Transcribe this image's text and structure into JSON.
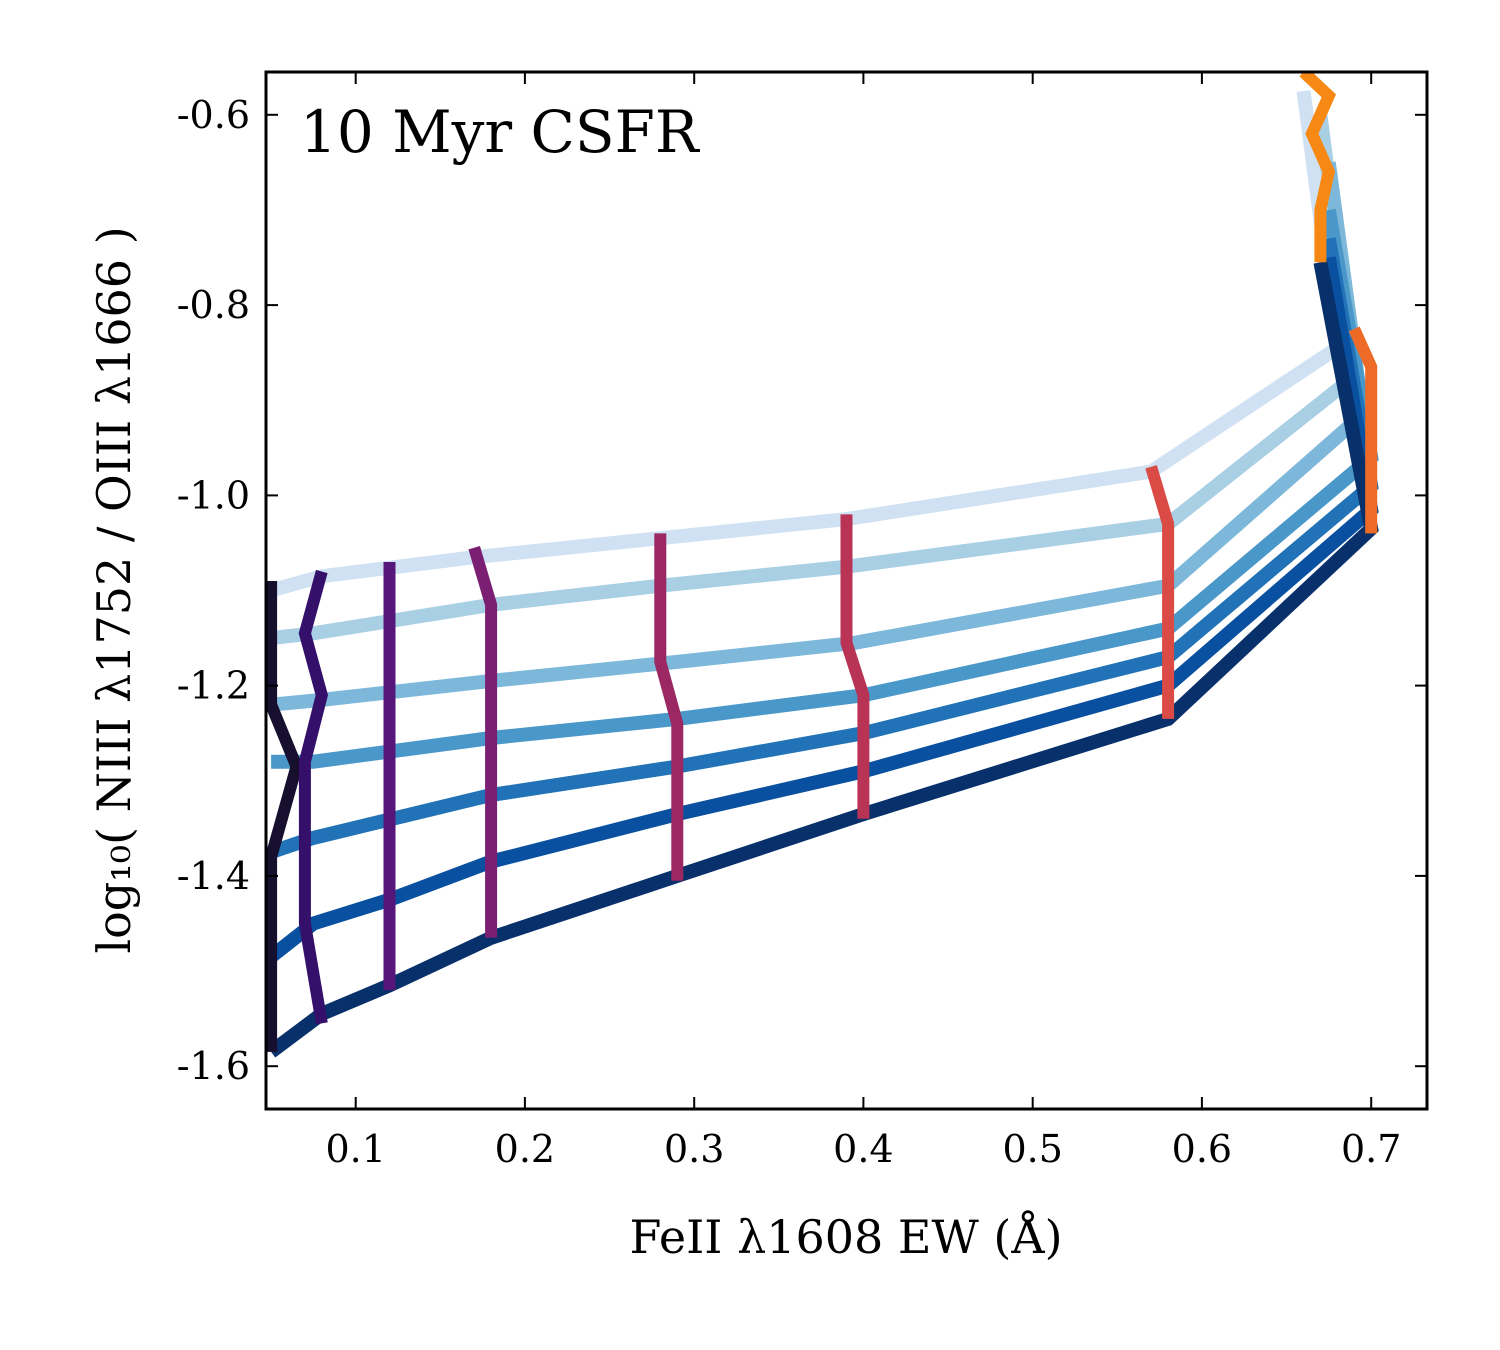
{
  "chart_data": {
    "type": "line",
    "annotation": "10 Myr CSFR",
    "xlabel": "FeII λ1608 EW (Å)",
    "ylabel": "log₁₀( NIII λ1752 / OIII λ1666 )",
    "xlim": [
      0.047,
      0.733
    ],
    "ylim": [
      -1.645,
      -0.555
    ],
    "xticks": [
      0.1,
      0.2,
      0.3,
      0.4,
      0.5,
      0.6,
      0.7
    ],
    "xtick_labels": [
      "0.1",
      "0.2",
      "0.3",
      "0.4",
      "0.5",
      "0.6",
      "0.7"
    ],
    "yticks": [
      -1.6,
      -1.4,
      -1.2,
      -1.0,
      -0.8,
      -0.6
    ],
    "ytick_labels": [
      "-1.6",
      "-1.4",
      "-1.2",
      "-1.0",
      "-0.8",
      "-0.6"
    ],
    "grid": false,
    "legend": "none",
    "blue_series": [
      {
        "color": "#cfe1f2",
        "x": [
          0.05,
          0.08,
          0.17,
          0.28,
          0.39,
          0.57,
          0.68,
          0.66
        ],
        "y": [
          -1.1,
          -1.085,
          -1.065,
          -1.045,
          -1.025,
          -0.975,
          -0.845,
          -0.575
        ]
      },
      {
        "color": "#a9cfe5",
        "x": [
          0.05,
          0.075,
          0.18,
          0.28,
          0.39,
          0.58,
          0.69,
          0.67
        ],
        "y": [
          -1.15,
          -1.145,
          -1.115,
          -1.095,
          -1.075,
          -1.03,
          -0.875,
          -0.6
        ]
      },
      {
        "color": "#7db8da",
        "x": [
          0.05,
          0.08,
          0.18,
          0.29,
          0.395,
          0.58,
          0.695,
          0.675
        ],
        "y": [
          -1.22,
          -1.215,
          -1.195,
          -1.175,
          -1.155,
          -1.095,
          -0.915,
          -0.65
        ]
      },
      {
        "color": "#4a98c9",
        "x": [
          0.05,
          0.075,
          0.18,
          0.29,
          0.4,
          0.58,
          0.7,
          0.675
        ],
        "y": [
          -1.28,
          -1.28,
          -1.255,
          -1.235,
          -1.21,
          -1.14,
          -0.96,
          -0.7
        ]
      },
      {
        "color": "#2172b6",
        "x": [
          0.05,
          0.075,
          0.18,
          0.29,
          0.4,
          0.58,
          0.7,
          0.675
        ],
        "y": [
          -1.375,
          -1.36,
          -1.315,
          -1.285,
          -1.25,
          -1.17,
          -0.99,
          -0.73
        ]
      },
      {
        "color": "#0a50a0",
        "x": [
          0.05,
          0.075,
          0.12,
          0.18,
          0.29,
          0.4,
          0.58,
          0.7,
          0.675
        ],
        "y": [
          -1.485,
          -1.45,
          -1.425,
          -1.385,
          -1.335,
          -1.29,
          -1.2,
          -1.015,
          -0.75
        ]
      },
      {
        "color": "#08306b",
        "x": [
          0.05,
          0.08,
          0.12,
          0.18,
          0.29,
          0.4,
          0.58,
          0.7,
          0.67
        ],
        "y": [
          -1.585,
          -1.545,
          -1.515,
          -1.465,
          -1.4,
          -1.335,
          -1.235,
          -1.035,
          -0.755
        ]
      }
    ],
    "track_series": [
      {
        "color": "#160f2e",
        "x": [
          0.05,
          0.05,
          0.065,
          0.05,
          0.05
        ],
        "y": [
          -1.09,
          -1.22,
          -1.285,
          -1.38,
          -1.585
        ]
      },
      {
        "color": "#35106a",
        "x": [
          0.08,
          0.07,
          0.08,
          0.07,
          0.07,
          0.08
        ],
        "y": [
          -1.08,
          -1.145,
          -1.21,
          -1.28,
          -1.45,
          -1.555
        ]
      },
      {
        "color": "#56167a",
        "x": [
          0.12,
          0.12
        ],
        "y": [
          -1.07,
          -1.52
        ]
      },
      {
        "color": "#7b1f73",
        "x": [
          0.17,
          0.18,
          0.18
        ],
        "y": [
          -1.055,
          -1.115,
          -1.465
        ]
      },
      {
        "color": "#9b2863",
        "x": [
          0.28,
          0.28,
          0.29,
          0.29
        ],
        "y": [
          -1.04,
          -1.175,
          -1.24,
          -1.405
        ]
      },
      {
        "color": "#b93355",
        "x": [
          0.39,
          0.39,
          0.4,
          0.4
        ],
        "y": [
          -1.02,
          -1.155,
          -1.21,
          -1.34
        ]
      },
      {
        "color": "#da4b45",
        "x": [
          0.57,
          0.58,
          0.58
        ],
        "y": [
          -0.97,
          -1.03,
          -1.235
        ]
      },
      {
        "color": "#ee6a27",
        "x": [
          0.69,
          0.7,
          0.7
        ],
        "y": [
          -0.825,
          -0.865,
          -1.04
        ]
      },
      {
        "color": "#f68813",
        "x": [
          0.66,
          0.675,
          0.665,
          0.675,
          0.67,
          0.67
        ],
        "y": [
          -0.555,
          -0.58,
          -0.62,
          -0.66,
          -0.7,
          -0.755
        ]
      }
    ]
  }
}
